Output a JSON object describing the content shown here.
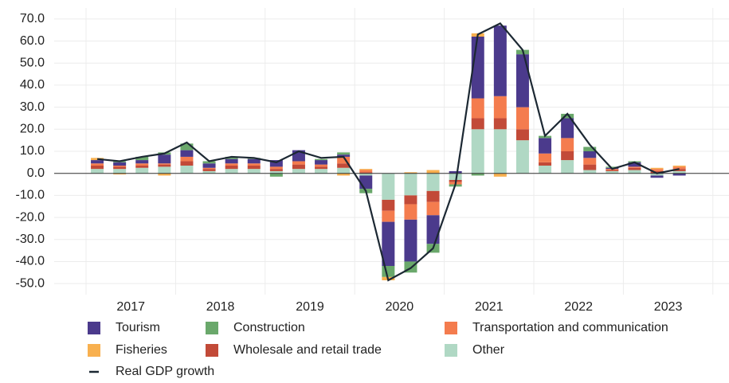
{
  "chart_data": {
    "type": "stacked-bar-line",
    "categories": [
      null,
      null,
      null,
      null,
      null,
      null,
      null,
      null,
      null,
      null,
      null,
      null,
      null,
      null,
      null,
      null,
      null,
      null,
      null,
      null,
      null,
      null,
      null,
      null,
      null,
      null,
      null
    ],
    "year_labels": [
      "2017",
      "2018",
      "2019",
      "2020",
      "2021",
      "2022",
      "2023"
    ],
    "ylim": [
      -55,
      75
    ],
    "yticks": [
      {
        "value": -50,
        "label": "-50.0"
      },
      {
        "value": -40,
        "label": "-40.0"
      },
      {
        "value": -30,
        "label": "-30.0"
      },
      {
        "value": -20,
        "label": "-20.0"
      },
      {
        "value": -10,
        "label": "-10.0"
      },
      {
        "value": 0,
        "label": "0.0"
      },
      {
        "value": 10,
        "label": "10.0"
      },
      {
        "value": 20,
        "label": "20.0"
      },
      {
        "value": 30,
        "label": "30.0"
      },
      {
        "value": 40,
        "label": "40.0"
      },
      {
        "value": 50,
        "label": "50.0"
      },
      {
        "value": 60,
        "label": "60.0"
      },
      {
        "value": 70,
        "label": "70.0"
      }
    ],
    "grid": true,
    "series": [
      {
        "name": "Tourism",
        "color": "#4b3a8c",
        "values": [
          1.5,
          1.5,
          1.5,
          4,
          3,
          2,
          2,
          2,
          3,
          5,
          2,
          1,
          -6,
          -20,
          -19,
          -13,
          1,
          28,
          32,
          24,
          7,
          9,
          3,
          0.5,
          2,
          -1,
          -1
        ]
      },
      {
        "name": "Construction",
        "color": "#6aa86b",
        "values": [
          0,
          0.5,
          1.5,
          1,
          3,
          1,
          1,
          0.5,
          -1.5,
          0,
          0.5,
          1,
          -2,
          -5,
          -5,
          -4,
          -1,
          -1,
          0,
          2,
          1,
          2,
          2,
          0.5,
          0.5,
          0,
          0
        ]
      },
      {
        "name": "Transportation and communication",
        "color": "#f47c4e",
        "values": [
          1,
          0.5,
          1,
          0.5,
          2,
          0.5,
          1,
          1,
          1,
          1.5,
          1,
          3,
          1,
          -5,
          -7,
          -6,
          -1,
          9,
          10,
          10,
          4,
          6,
          3,
          0.5,
          0.5,
          1,
          1
        ]
      },
      {
        "name": "Fisheries",
        "color": "#f8b04f",
        "values": [
          1,
          -0.5,
          0,
          -1,
          0,
          0,
          0,
          0,
          0,
          0,
          0,
          -1,
          0.5,
          -1.5,
          0.5,
          1.5,
          0,
          1.5,
          -1.5,
          0,
          0,
          0,
          0,
          0,
          0,
          0.5,
          0.5
        ]
      },
      {
        "name": "Wholesale and retail trade",
        "color": "#c24a38",
        "values": [
          1.5,
          1,
          1,
          1,
          2,
          1,
          1.5,
          1.5,
          1,
          2,
          1,
          2,
          0.5,
          -5,
          -4,
          -5,
          -1,
          5,
          5,
          5,
          1.5,
          4,
          2.5,
          0.5,
          1,
          1,
          1
        ]
      },
      {
        "name": "Other",
        "color": "#b0d8c4",
        "values": [
          2,
          2,
          2.5,
          3,
          3.5,
          1,
          2,
          2,
          1,
          2,
          2,
          2.5,
          -1,
          -12,
          -10,
          -8,
          -3,
          20,
          20,
          15,
          3.5,
          6,
          1.5,
          1,
          1.5,
          -1,
          1
        ]
      }
    ],
    "line": {
      "name": "Real GDP growth",
      "color": "#1c2833",
      "values": [
        6.5,
        5.5,
        7.5,
        9,
        14,
        5.5,
        7.5,
        7,
        5,
        10,
        7,
        7.5,
        -8,
        -48.5,
        -43,
        -34,
        -5,
        63,
        68,
        56,
        17,
        27,
        13,
        2,
        5,
        0,
        2
      ]
    }
  }
}
